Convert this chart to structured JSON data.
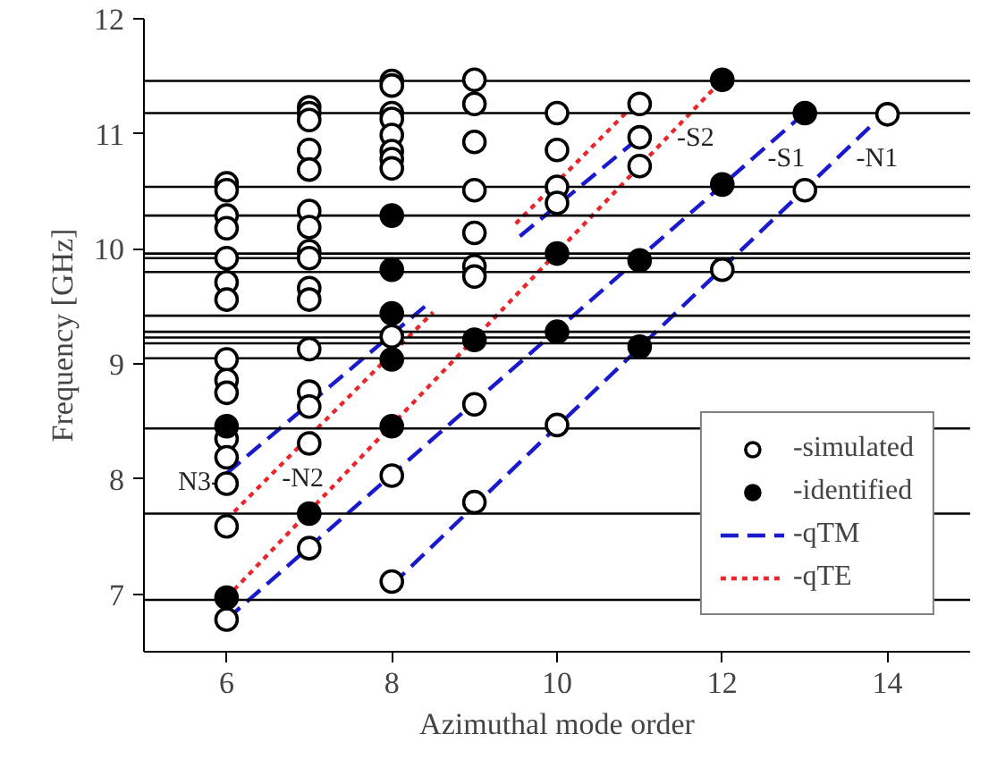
{
  "chart_data": {
    "type": "scatter",
    "xlabel": "Azimuthal mode order",
    "ylabel": "Frequency [GHz]",
    "xlim": [
      5,
      15
    ],
    "ylim": [
      6.5,
      12
    ],
    "xticks": [
      6,
      8,
      10,
      12,
      14
    ],
    "yticks": [
      7,
      8,
      9,
      10,
      11,
      12
    ],
    "grid": false,
    "legend": "bottom right",
    "series": [
      {
        "name": "-simulated",
        "type": "scatter",
        "marker": "circle",
        "color": "#ffffff",
        "x": [
          6,
          6,
          6,
          6,
          6,
          6,
          6,
          6,
          6,
          6,
          6,
          6,
          6,
          6,
          6,
          7,
          7,
          7,
          7,
          7,
          7,
          7,
          7,
          7,
          7,
          7,
          7,
          7,
          7,
          7,
          7,
          8,
          8,
          8,
          8,
          8,
          8,
          8,
          8,
          8,
          8,
          8,
          9,
          9,
          9,
          9,
          9,
          9,
          9,
          9,
          9,
          10,
          10,
          10,
          10,
          10,
          11,
          11,
          11,
          12,
          13,
          14
        ],
        "values": [
          10.57,
          10.51,
          10.29,
          10.18,
          9.92,
          9.71,
          9.56,
          9.04,
          8.86,
          8.75,
          8.35,
          8.19,
          7.96,
          7.59,
          6.78,
          11.23,
          11.18,
          11.12,
          10.86,
          10.69,
          10.33,
          10.19,
          9.98,
          9.92,
          9.66,
          9.56,
          9.13,
          8.76,
          8.63,
          8.31,
          7.4,
          11.46,
          11.42,
          11.18,
          11.13,
          10.99,
          10.85,
          10.78,
          10.7,
          9.24,
          8.03,
          7.11,
          11.47,
          11.26,
          10.93,
          10.51,
          10.14,
          9.85,
          9.76,
          8.65,
          7.8,
          11.18,
          10.86,
          10.54,
          10.4,
          8.47,
          11.26,
          10.97,
          10.72,
          9.82,
          10.51,
          11.17
        ]
      },
      {
        "name": "-identified",
        "type": "scatter",
        "marker": "circle",
        "color": "#000000",
        "x": [
          6,
          6,
          7,
          8,
          8,
          8,
          8,
          8,
          9,
          10,
          10,
          11,
          11,
          12,
          12,
          13
        ],
        "values": [
          8.46,
          6.97,
          7.7,
          10.29,
          9.82,
          9.44,
          9.04,
          8.46,
          9.21,
          9.96,
          9.28,
          9.9,
          9.15,
          11.47,
          10.56,
          11.18
        ]
      },
      {
        "name": "-qTM",
        "type": "line",
        "line_style": "dashed",
        "color": "#1a1acd",
        "x": [
          8,
          13.8
        ],
        "values": [
          7.08,
          11.07
        ]
      },
      {
        "type": "line",
        "line_style": "dashed",
        "color": "#1a1acd",
        "x": [
          6,
          12.9
        ],
        "values": [
          6.78,
          11.12
        ]
      },
      {
        "type": "line",
        "line_style": "dashed",
        "color": "#1a1acd",
        "x": [
          6,
          8.4
        ],
        "values": [
          8.05,
          9.5
        ]
      },
      {
        "type": "line",
        "line_style": "dashed",
        "color": "#1a1acd",
        "x": [
          9.55,
          11
        ],
        "values": [
          10.11,
          10.97
        ]
      },
      {
        "name": "-qTE",
        "type": "line",
        "line_style": "dotted",
        "color": "#e8262b",
        "x": [
          6,
          12
        ],
        "values": [
          6.97,
          11.47
        ]
      },
      {
        "type": "line",
        "line_style": "dotted",
        "color": "#e8262b",
        "x": [
          6,
          8.5
        ],
        "values": [
          7.65,
          9.45
        ]
      },
      {
        "type": "line",
        "line_style": "dotted",
        "color": "#e8262b",
        "x": [
          9.5,
          10.9
        ],
        "values": [
          10.22,
          11.23
        ]
      }
    ],
    "ref_lines": [
      {
        "axis": "y",
        "value": 11.46,
        "color": "#000000"
      },
      {
        "axis": "y",
        "value": 11.18,
        "color": "#000000"
      },
      {
        "axis": "y",
        "value": 10.54,
        "color": "#000000"
      },
      {
        "axis": "y",
        "value": 10.29,
        "color": "#000000"
      },
      {
        "axis": "y",
        "value": 9.96,
        "color": "#000000"
      },
      {
        "axis": "y",
        "value": 9.92,
        "color": "#000000"
      },
      {
        "axis": "y",
        "value": 9.8,
        "color": "#000000"
      },
      {
        "axis": "y",
        "value": 9.42,
        "color": "#000000"
      },
      {
        "axis": "y",
        "value": 9.28,
        "color": "#000000"
      },
      {
        "axis": "y",
        "value": 9.23,
        "color": "#000000"
      },
      {
        "axis": "y",
        "value": 9.18,
        "color": "#000000"
      },
      {
        "axis": "y",
        "value": 9.05,
        "color": "#000000"
      },
      {
        "axis": "y",
        "value": 8.44,
        "color": "#000000"
      },
      {
        "axis": "y",
        "value": 7.7,
        "color": "#000000"
      },
      {
        "axis": "y",
        "value": 6.95,
        "color": "#000000"
      }
    ],
    "annotations": [
      "N3-",
      "-N2",
      "-S2",
      "-S1",
      "-N1"
    ]
  }
}
